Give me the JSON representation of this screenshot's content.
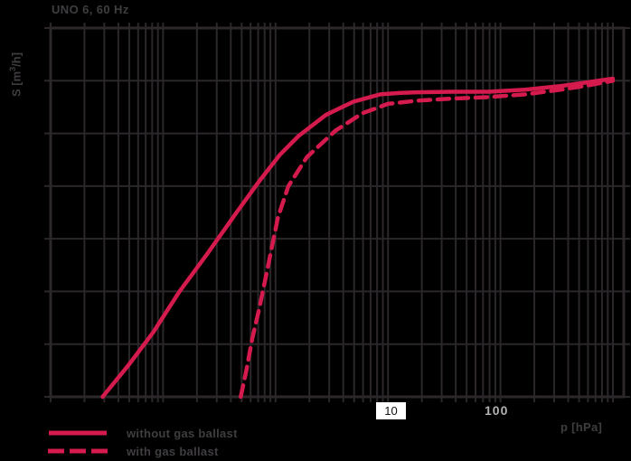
{
  "colors": {
    "background": "#000000",
    "grid": "#2b272a",
    "accent": "#d51a4e",
    "text_dim": "#403d41",
    "tick_light": "#b2b2b2",
    "tick_box_bg": "#ffffff",
    "tick_box_text": "#111111"
  },
  "ylabel_parts": {
    "prefix": "S [m",
    "sup": "3",
    "suffix": "/h]"
  },
  "chart_data": {
    "type": "line",
    "title": "UNO 6, 60 Hz",
    "xlabel": "p [hPa]",
    "ylabel": "S [m³/h]",
    "x_scale": "log",
    "x_range": [
      0.01,
      1250
    ],
    "x_ticks": [
      {
        "label": "10",
        "boxed": true
      },
      {
        "label": "100",
        "boxed": false
      }
    ],
    "y_scale": "linear",
    "y_range": [
      0,
      7
    ],
    "y_gridline_step": 1,
    "y_tick_labels_shown": false,
    "grid": "on",
    "legend_position": "bottom-left",
    "series": [
      {
        "name": "without gas ballast",
        "style": "solid",
        "points": [
          [
            0.029,
            0
          ],
          [
            0.05,
            0.62
          ],
          [
            0.082,
            1.23
          ],
          [
            0.14,
            2.0
          ],
          [
            0.25,
            2.73
          ],
          [
            0.45,
            3.5
          ],
          [
            0.72,
            4.1
          ],
          [
            1.1,
            4.6
          ],
          [
            1.6,
            4.95
          ],
          [
            2.8,
            5.35
          ],
          [
            4.9,
            5.6
          ],
          [
            8.5,
            5.74
          ],
          [
            13,
            5.77
          ],
          [
            18,
            5.78
          ],
          [
            37,
            5.79
          ],
          [
            78,
            5.79
          ],
          [
            165,
            5.83
          ],
          [
            345,
            5.9
          ],
          [
            600,
            5.97
          ],
          [
            1000,
            6.04
          ]
        ]
      },
      {
        "name": "with gas ballast",
        "style": "dashed",
        "points": [
          [
            0.49,
            0
          ],
          [
            0.55,
            0.5
          ],
          [
            0.62,
            1.1
          ],
          [
            0.72,
            1.7
          ],
          [
            0.87,
            2.55
          ],
          [
            1.05,
            3.4
          ],
          [
            1.3,
            4.0
          ],
          [
            1.9,
            4.55
          ],
          [
            3.4,
            5.05
          ],
          [
            5.9,
            5.38
          ],
          [
            10,
            5.56
          ],
          [
            18,
            5.62
          ],
          [
            37,
            5.66
          ],
          [
            78,
            5.69
          ],
          [
            165,
            5.74
          ],
          [
            345,
            5.83
          ],
          [
            600,
            5.91
          ],
          [
            1000,
            6.0
          ]
        ]
      }
    ]
  }
}
